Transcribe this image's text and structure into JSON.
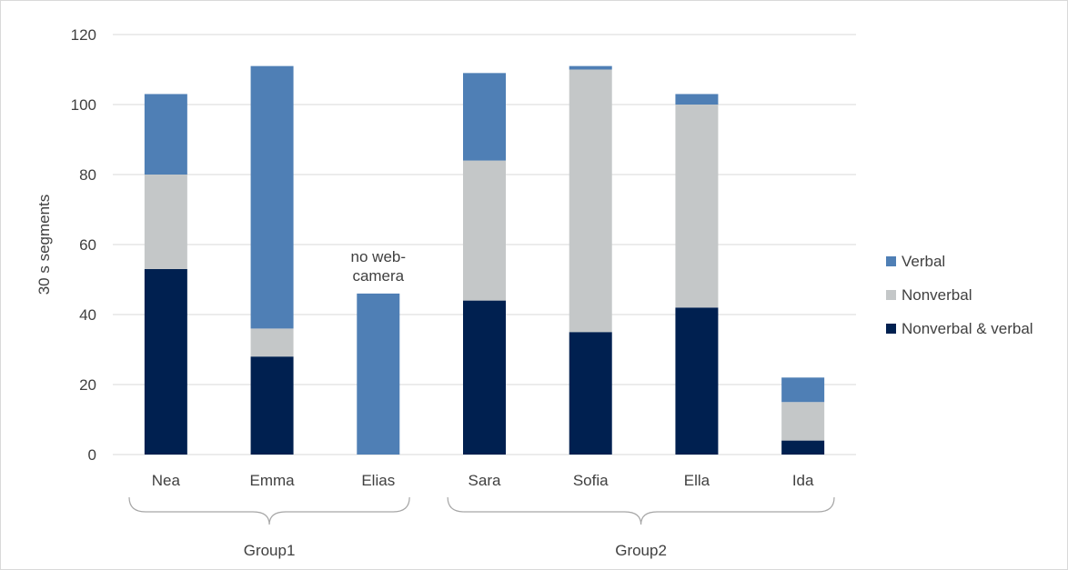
{
  "chart_data": {
    "type": "bar",
    "stacked": true,
    "categories": [
      "Nea",
      "Emma",
      "Elias",
      "Sara",
      "Sofia",
      "Ella",
      "Ida"
    ],
    "series": [
      {
        "name": "Nonverbal & verbal",
        "color": "#002050",
        "values": [
          53,
          28,
          0,
          44,
          35,
          42,
          4
        ]
      },
      {
        "name": "Nonverbal",
        "color": "#c4c7c8",
        "values": [
          27,
          8,
          0,
          40,
          75,
          58,
          11
        ]
      },
      {
        "name": "Verbal",
        "color": "#4f7fb5",
        "values": [
          23,
          75,
          46,
          25,
          1,
          3,
          7
        ]
      }
    ],
    "ylabel": "30 s segments",
    "ylim": [
      0,
      120
    ],
    "yticks": [
      0,
      20,
      40,
      60,
      80,
      100,
      120
    ],
    "grid": true,
    "legend_position": "right",
    "legend_order": [
      "Verbal",
      "Nonverbal",
      "Nonverbal & verbal"
    ],
    "annotations": [
      {
        "category": "Elias",
        "lines": [
          "no web-",
          "camera"
        ]
      }
    ],
    "groups": [
      {
        "label": "Group1",
        "categories": [
          "Nea",
          "Emma",
          "Elias"
        ]
      },
      {
        "label": "Group2",
        "categories": [
          "Sara",
          "Sofia",
          "Ella",
          "Ida"
        ]
      }
    ]
  }
}
